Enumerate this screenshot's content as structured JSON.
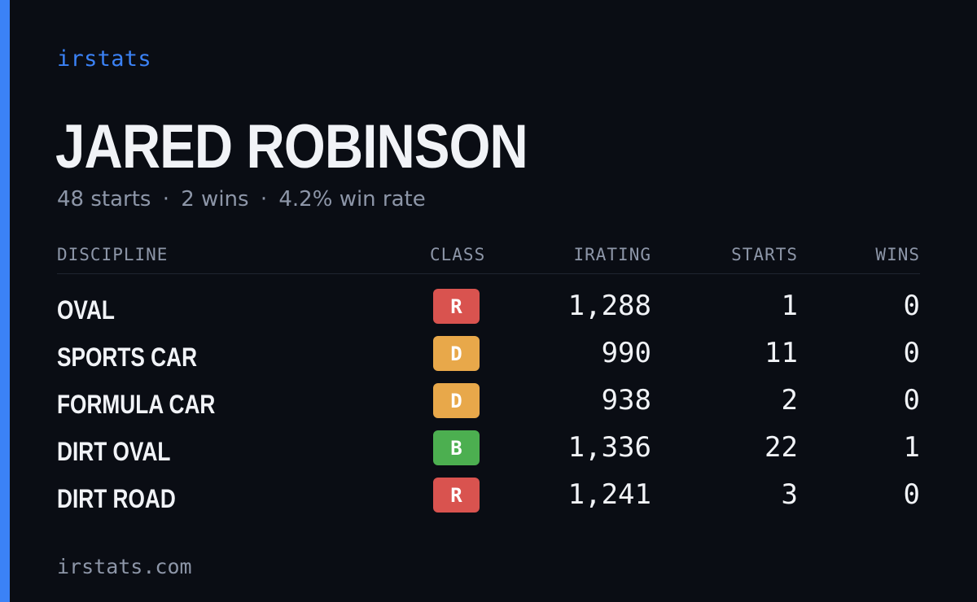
{
  "colors": {
    "background": "#0a0d14",
    "accent": "#3b82f6",
    "class_R": "#d9534f",
    "class_D": "#e8a84a",
    "class_B": "#4caf50"
  },
  "brand": "irstats",
  "player": {
    "name": "JARED ROBINSON",
    "summary": {
      "starts": "48 starts",
      "wins": "2 wins",
      "win_rate": "4.2% win rate",
      "separator": "·"
    }
  },
  "table": {
    "headers": {
      "discipline": "DISCIPLINE",
      "class": "CLASS",
      "irating": "IRATING",
      "starts": "STARTS",
      "wins": "WINS"
    },
    "rows": [
      {
        "discipline": "OVAL",
        "class": "R",
        "irating": "1,288",
        "starts": "1",
        "wins": "0"
      },
      {
        "discipline": "SPORTS CAR",
        "class": "D",
        "irating": "990",
        "starts": "11",
        "wins": "0"
      },
      {
        "discipline": "FORMULA CAR",
        "class": "D",
        "irating": "938",
        "starts": "2",
        "wins": "0"
      },
      {
        "discipline": "DIRT OVAL",
        "class": "B",
        "irating": "1,336",
        "starts": "22",
        "wins": "1"
      },
      {
        "discipline": "DIRT ROAD",
        "class": "R",
        "irating": "1,241",
        "starts": "3",
        "wins": "0"
      }
    ]
  },
  "footer": "irstats.com"
}
